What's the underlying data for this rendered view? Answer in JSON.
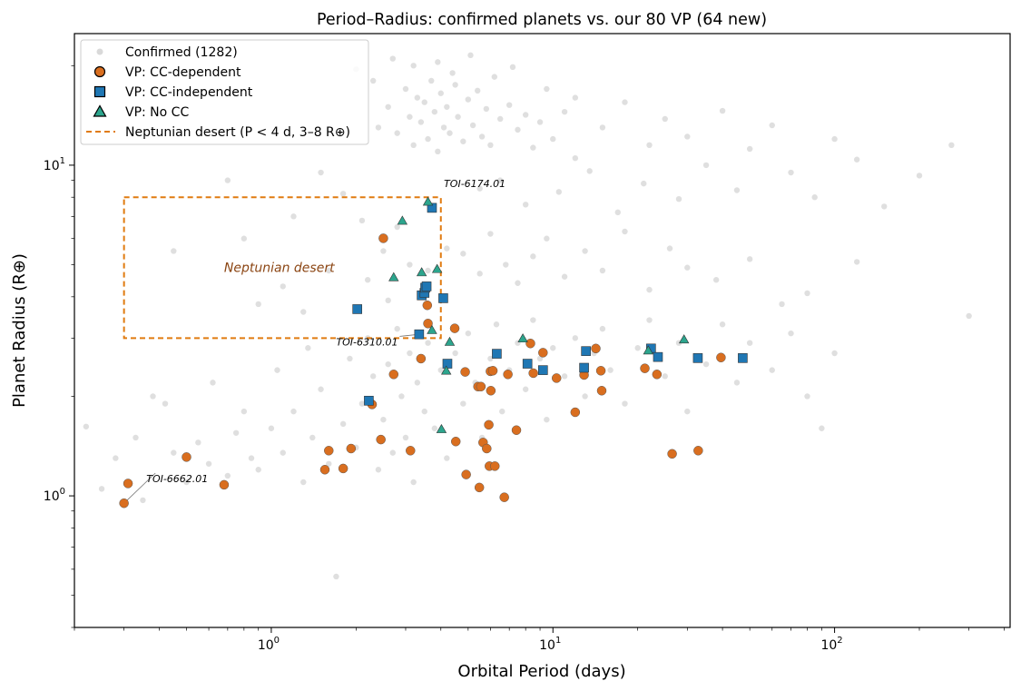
{
  "chart_data": {
    "type": "scatter",
    "title": "Period–Radius: confirmed planets vs. our 80 VP (64 new)",
    "xlabel": "Orbital Period (days)",
    "ylabel": "Planet Radius (R⊕)",
    "xscale": "log",
    "yscale": "log",
    "xlim": [
      0.2,
      420
    ],
    "ylim": [
      0.4,
      25
    ],
    "x_ticks": [
      {
        "value": 1,
        "base": "10",
        "exp": "0"
      },
      {
        "value": 10,
        "base": "10",
        "exp": "1"
      },
      {
        "value": 100,
        "base": "10",
        "exp": "2"
      }
    ],
    "y_ticks": [
      {
        "value": 1,
        "base": "10",
        "exp": "0"
      },
      {
        "value": 10,
        "base": "10",
        "exp": "1"
      }
    ],
    "grid": false,
    "legend_position": "top-left",
    "colors": {
      "confirmed": "#d9d9d9",
      "cc_dependent": "#d96e1f",
      "cc_independent": "#1f77b4",
      "no_cc": "#2ca58d",
      "desert": "#e07b10",
      "annotation": "#8b4513"
    },
    "series": [
      {
        "name": "Confirmed (1282)",
        "marker": "circle",
        "points": [
          [
            0.22,
            1.62
          ],
          [
            0.25,
            1.05
          ],
          [
            0.28,
            1.3
          ],
          [
            0.33,
            1.5
          ],
          [
            0.35,
            0.97
          ],
          [
            0.38,
            2.0
          ],
          [
            0.42,
            1.9
          ],
          [
            0.45,
            1.35
          ],
          [
            0.5,
            1.1
          ],
          [
            0.55,
            1.45
          ],
          [
            0.6,
            1.25
          ],
          [
            0.62,
            2.2
          ],
          [
            0.7,
            1.15
          ],
          [
            0.75,
            1.55
          ],
          [
            0.8,
            1.8
          ],
          [
            0.85,
            1.3
          ],
          [
            0.9,
            1.2
          ],
          [
            1.0,
            1.6
          ],
          [
            1.05,
            2.4
          ],
          [
            1.1,
            1.35
          ],
          [
            1.2,
            1.8
          ],
          [
            1.3,
            1.1
          ],
          [
            1.35,
            2.8
          ],
          [
            1.4,
            1.5
          ],
          [
            1.5,
            2.1
          ],
          [
            1.6,
            1.25
          ],
          [
            1.7,
            0.57
          ],
          [
            1.8,
            1.65
          ],
          [
            1.9,
            2.6
          ],
          [
            2.0,
            1.4
          ],
          [
            2.1,
            1.9
          ],
          [
            2.2,
            3.0
          ],
          [
            2.3,
            2.3
          ],
          [
            2.4,
            1.2
          ],
          [
            2.5,
            1.7
          ],
          [
            2.6,
            2.5
          ],
          [
            2.7,
            1.35
          ],
          [
            2.8,
            3.2
          ],
          [
            2.9,
            2.0
          ],
          [
            3.0,
            1.5
          ],
          [
            3.1,
            2.7
          ],
          [
            3.2,
            1.1
          ],
          [
            3.3,
            2.2
          ],
          [
            3.5,
            1.8
          ],
          [
            3.6,
            2.9
          ],
          [
            3.8,
            1.6
          ],
          [
            4.0,
            2.4
          ],
          [
            4.2,
            1.3
          ],
          [
            4.5,
            2.7
          ],
          [
            4.8,
            1.9
          ],
          [
            5.0,
            3.1
          ],
          [
            5.3,
            2.2
          ],
          [
            5.6,
            1.5
          ],
          [
            6.0,
            2.6
          ],
          [
            6.3,
            3.3
          ],
          [
            6.6,
            1.8
          ],
          [
            7.0,
            2.4
          ],
          [
            7.5,
            2.9
          ],
          [
            8.0,
            2.1
          ],
          [
            8.5,
            3.4
          ],
          [
            9.0,
            2.6
          ],
          [
            9.5,
            1.7
          ],
          [
            10.0,
            2.8
          ],
          [
            11.0,
            2.3
          ],
          [
            12.0,
            3.0
          ],
          [
            13.0,
            2.0
          ],
          [
            14.0,
            2.7
          ],
          [
            15.0,
            3.2
          ],
          [
            16.0,
            2.4
          ],
          [
            18.0,
            1.9
          ],
          [
            20.0,
            2.8
          ],
          [
            22.0,
            3.4
          ],
          [
            25.0,
            2.3
          ],
          [
            28.0,
            2.9
          ],
          [
            30.0,
            1.8
          ],
          [
            35.0,
            2.5
          ],
          [
            40.0,
            3.3
          ],
          [
            45.0,
            2.2
          ],
          [
            50.0,
            2.9
          ],
          [
            60.0,
            2.4
          ],
          [
            70.0,
            3.1
          ],
          [
            80.0,
            2.0
          ],
          [
            90.0,
            1.6
          ],
          [
            100.0,
            2.7
          ],
          [
            0.45,
            5.5
          ],
          [
            0.7,
            9.0
          ],
          [
            2.2,
            4.5
          ],
          [
            2.5,
            5.5
          ],
          [
            2.8,
            6.5
          ],
          [
            3.1,
            5.0
          ],
          [
            3.6,
            4.8
          ],
          [
            4.2,
            5.6
          ],
          [
            4.8,
            5.4
          ],
          [
            5.5,
            4.7
          ],
          [
            6.0,
            6.2
          ],
          [
            6.8,
            5.0
          ],
          [
            7.5,
            4.4
          ],
          [
            8.5,
            5.3
          ],
          [
            9.5,
            6.0
          ],
          [
            11.0,
            4.6
          ],
          [
            13.0,
            5.5
          ],
          [
            15.0,
            4.8
          ],
          [
            18.0,
            6.3
          ],
          [
            22.0,
            4.2
          ],
          [
            26.0,
            5.6
          ],
          [
            30.0,
            4.9
          ],
          [
            38.0,
            4.5
          ],
          [
            50.0,
            5.2
          ],
          [
            65.0,
            3.8
          ],
          [
            80.0,
            4.1
          ],
          [
            120.0,
            5.1
          ],
          [
            2.4,
            13.0
          ],
          [
            2.6,
            15.0
          ],
          [
            2.8,
            12.5
          ],
          [
            3.0,
            17.0
          ],
          [
            3.1,
            14.0
          ],
          [
            3.2,
            11.5
          ],
          [
            3.3,
            16.0
          ],
          [
            3.4,
            13.5
          ],
          [
            3.5,
            15.5
          ],
          [
            3.6,
            12.0
          ],
          [
            3.7,
            18.0
          ],
          [
            3.8,
            14.5
          ],
          [
            3.9,
            11.0
          ],
          [
            4.0,
            16.5
          ],
          [
            4.1,
            13.0
          ],
          [
            4.2,
            15.0
          ],
          [
            4.3,
            12.5
          ],
          [
            4.5,
            17.5
          ],
          [
            4.6,
            14.0
          ],
          [
            4.8,
            11.8
          ],
          [
            5.0,
            15.8
          ],
          [
            5.2,
            13.2
          ],
          [
            5.4,
            16.8
          ],
          [
            5.6,
            12.2
          ],
          [
            5.8,
            14.8
          ],
          [
            6.0,
            11.5
          ],
          [
            6.5,
            13.8
          ],
          [
            7.0,
            15.2
          ],
          [
            7.5,
            12.8
          ],
          [
            8.0,
            14.2
          ],
          [
            8.5,
            11.3
          ],
          [
            9.0,
            13.5
          ],
          [
            10.0,
            12.0
          ],
          [
            11.0,
            14.5
          ],
          [
            12.0,
            10.5
          ],
          [
            2.0,
            19.5
          ],
          [
            2.3,
            18.0
          ],
          [
            2.7,
            21.0
          ],
          [
            3.2,
            20.0
          ],
          [
            3.9,
            20.5
          ],
          [
            4.4,
            19.0
          ],
          [
            5.1,
            21.5
          ],
          [
            6.2,
            18.5
          ],
          [
            7.2,
            19.8
          ],
          [
            9.5,
            17.0
          ],
          [
            12.0,
            16.0
          ],
          [
            15.0,
            13.0
          ],
          [
            18.0,
            15.5
          ],
          [
            22.0,
            11.5
          ],
          [
            25.0,
            13.8
          ],
          [
            30.0,
            12.2
          ],
          [
            35.0,
            10.0
          ],
          [
            40.0,
            14.6
          ],
          [
            50.0,
            11.2
          ],
          [
            60.0,
            13.2
          ],
          [
            70.0,
            9.5
          ],
          [
            85.0,
            8.0
          ],
          [
            100.0,
            12.0
          ],
          [
            120.0,
            10.4
          ],
          [
            150.0,
            7.5
          ],
          [
            200.0,
            9.3
          ],
          [
            260.0,
            11.5
          ],
          [
            300.0,
            3.5
          ],
          [
            1.5,
            9.5
          ],
          [
            1.2,
            7.0
          ],
          [
            0.8,
            6.0
          ],
          [
            1.8,
            8.2
          ],
          [
            2.1,
            6.8
          ],
          [
            5.5,
            8.5
          ],
          [
            6.5,
            9.0
          ],
          [
            8.0,
            7.6
          ],
          [
            10.5,
            8.3
          ],
          [
            13.5,
            9.6
          ],
          [
            17.0,
            7.2
          ],
          [
            21.0,
            8.8
          ],
          [
            28.0,
            7.9
          ],
          [
            45.0,
            8.4
          ],
          [
            0.9,
            3.8
          ],
          [
            1.1,
            4.3
          ],
          [
            1.3,
            3.6
          ],
          [
            1.6,
            4.8
          ],
          [
            2.6,
            3.9
          ]
        ]
      },
      {
        "name": "VP: CC-dependent",
        "marker": "circle",
        "points": [
          [
            0.3,
            0.95
          ],
          [
            0.31,
            1.09
          ],
          [
            0.5,
            1.31
          ],
          [
            0.68,
            1.08
          ],
          [
            1.55,
            1.2
          ],
          [
            1.6,
            1.37
          ],
          [
            1.8,
            1.21
          ],
          [
            1.92,
            1.39
          ],
          [
            2.28,
            1.89
          ],
          [
            2.45,
            1.48
          ],
          [
            2.5,
            6.01
          ],
          [
            2.72,
            2.33
          ],
          [
            3.12,
            1.37
          ],
          [
            3.4,
            2.6
          ],
          [
            3.55,
            4.26
          ],
          [
            3.58,
            3.77
          ],
          [
            3.6,
            3.32
          ],
          [
            4.48,
            3.21
          ],
          [
            4.52,
            1.46
          ],
          [
            4.88,
            2.37
          ],
          [
            4.92,
            1.16
          ],
          [
            5.42,
            2.14
          ],
          [
            5.48,
            1.06
          ],
          [
            5.55,
            2.14
          ],
          [
            5.65,
            1.45
          ],
          [
            5.82,
            1.39
          ],
          [
            5.92,
            1.64
          ],
          [
            5.95,
            1.23
          ],
          [
            6.0,
            2.38
          ],
          [
            6.02,
            2.08
          ],
          [
            6.12,
            2.39
          ],
          [
            6.22,
            1.23
          ],
          [
            6.72,
            0.99
          ],
          [
            6.92,
            2.33
          ],
          [
            7.42,
            1.58
          ],
          [
            8.32,
            2.89
          ],
          [
            8.52,
            2.35
          ],
          [
            9.22,
            2.71
          ],
          [
            10.3,
            2.27
          ],
          [
            12.0,
            1.79
          ],
          [
            12.9,
            2.32
          ],
          [
            14.2,
            2.79
          ],
          [
            14.8,
            2.39
          ],
          [
            14.9,
            2.08
          ],
          [
            21.2,
            2.43
          ],
          [
            23.4,
            2.33
          ],
          [
            26.5,
            1.34
          ],
          [
            32.8,
            1.37
          ],
          [
            39.5,
            2.62
          ]
        ]
      },
      {
        "name": "VP: CC-independent",
        "marker": "square",
        "points": [
          [
            2.02,
            3.67
          ],
          [
            2.22,
            1.94
          ],
          [
            3.35,
            3.08
          ],
          [
            3.42,
            4.04
          ],
          [
            3.5,
            4.11
          ],
          [
            3.52,
            4.26
          ],
          [
            3.56,
            4.3
          ],
          [
            3.72,
            7.43
          ],
          [
            4.08,
            3.96
          ],
          [
            4.22,
            2.51
          ],
          [
            6.32,
            2.69
          ],
          [
            8.12,
            2.51
          ],
          [
            9.22,
            2.4
          ],
          [
            12.9,
            2.44
          ],
          [
            13.1,
            2.74
          ],
          [
            22.3,
            2.79
          ],
          [
            23.6,
            2.63
          ],
          [
            32.7,
            2.61
          ],
          [
            47.2,
            2.61
          ]
        ]
      },
      {
        "name": "VP: No CC",
        "marker": "triangle",
        "points": [
          [
            2.72,
            4.58
          ],
          [
            2.92,
            6.79
          ],
          [
            3.42,
            4.74
          ],
          [
            3.6,
            7.75
          ],
          [
            3.72,
            3.17
          ],
          [
            3.88,
            4.85
          ],
          [
            4.02,
            1.59
          ],
          [
            4.18,
            2.39
          ],
          [
            4.3,
            2.92
          ],
          [
            7.82,
            2.99
          ],
          [
            21.8,
            2.75
          ],
          [
            29.2,
            2.97
          ]
        ]
      }
    ],
    "region": {
      "label": "Neptunian desert",
      "x": [
        0.3,
        4.0
      ],
      "y": [
        3.0,
        8.0
      ]
    },
    "legend": [
      {
        "label": "Confirmed (1282)",
        "marker": "dot"
      },
      {
        "label": "VP: CC-dependent",
        "marker": "circle"
      },
      {
        "label": "VP: CC-independent",
        "marker": "square"
      },
      {
        "label": "VP: No CC",
        "marker": "triangle"
      },
      {
        "label": "Neptunian desert (P < 4 d, 3–8 R⊕)",
        "marker": "dashed-line"
      }
    ],
    "annotations": [
      {
        "text": "TOI-6174.01",
        "x": 3.6,
        "y": 7.75,
        "text_x": 4.1,
        "text_y": 8.6
      },
      {
        "text": "TOI-6310.01",
        "x": 3.35,
        "y": 3.08,
        "text_x": 1.7,
        "text_y": 2.85
      },
      {
        "text": "TOI-6662.01",
        "x": 0.3,
        "y": 0.95,
        "text_x": 0.36,
        "text_y": 1.1
      }
    ]
  }
}
